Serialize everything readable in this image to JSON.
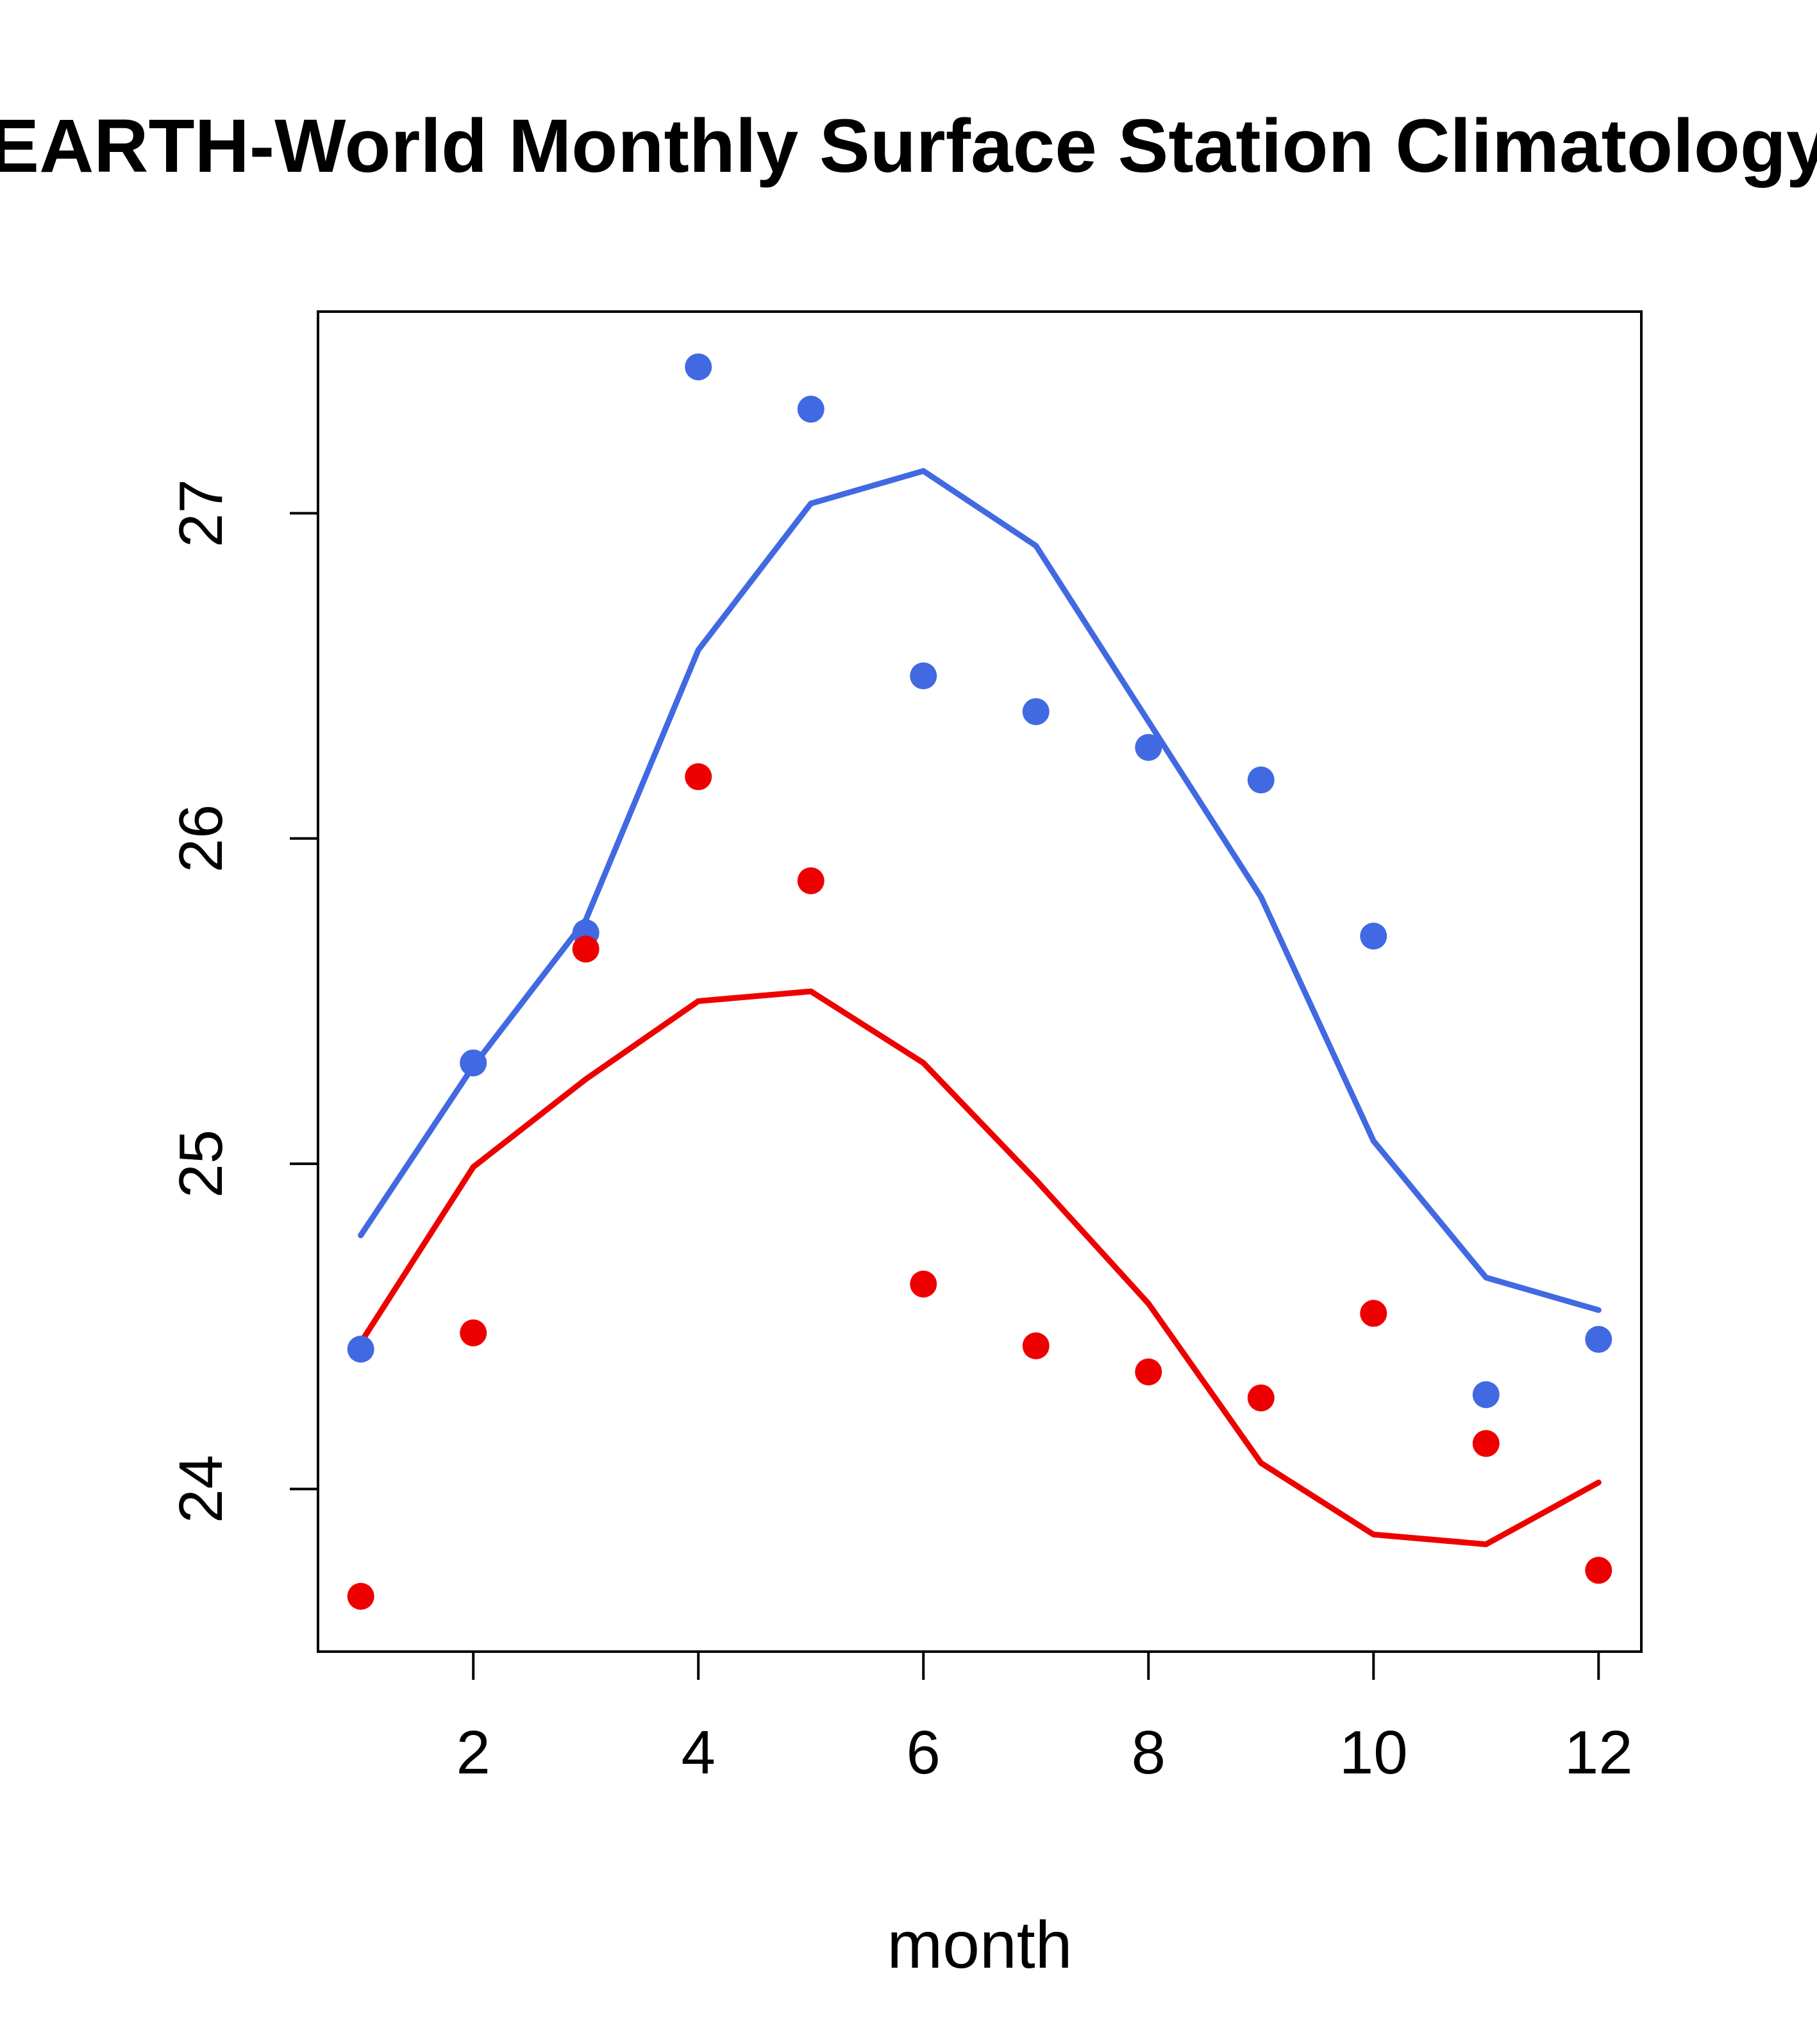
{
  "chart_data": {
    "type": "line",
    "title": "EARTH-World Monthly Surface Station Climatology",
    "xlabel": "month",
    "ylabel": "",
    "x": [
      1,
      2,
      3,
      4,
      5,
      6,
      7,
      8,
      9,
      10,
      11,
      12
    ],
    "xticks": [
      2,
      4,
      6,
      8,
      10,
      12
    ],
    "yticks": [
      24,
      25,
      26,
      27
    ],
    "xlim": [
      0.62,
      12.38
    ],
    "ylim": [
      23.5,
      27.62
    ],
    "grid": false,
    "legend": "none",
    "colors": {
      "blue": "#4169e1",
      "red": "#ee0000"
    },
    "series": [
      {
        "name": "blue-line",
        "kind": "line",
        "color": "#4169e1",
        "values": [
          24.78,
          25.3,
          25.75,
          26.58,
          27.03,
          27.13,
          26.9,
          26.36,
          25.82,
          25.07,
          24.65,
          24.55
        ]
      },
      {
        "name": "red-line",
        "kind": "line",
        "color": "#ee0000",
        "values": [
          24.45,
          24.99,
          25.26,
          25.5,
          25.53,
          25.31,
          24.95,
          24.57,
          24.08,
          23.86,
          23.83,
          24.02
        ]
      },
      {
        "name": "blue-points",
        "kind": "scatter",
        "color": "#4169e1",
        "values": [
          24.43,
          25.31,
          25.71,
          27.45,
          27.32,
          26.5,
          26.39,
          26.28,
          26.18,
          25.7,
          24.29,
          24.46
        ]
      },
      {
        "name": "red-points",
        "kind": "scatter",
        "color": "#ee0000",
        "values": [
          23.67,
          24.48,
          25.66,
          26.19,
          25.87,
          24.63,
          24.44,
          24.36,
          24.28,
          24.54,
          24.14,
          23.75
        ]
      }
    ]
  }
}
